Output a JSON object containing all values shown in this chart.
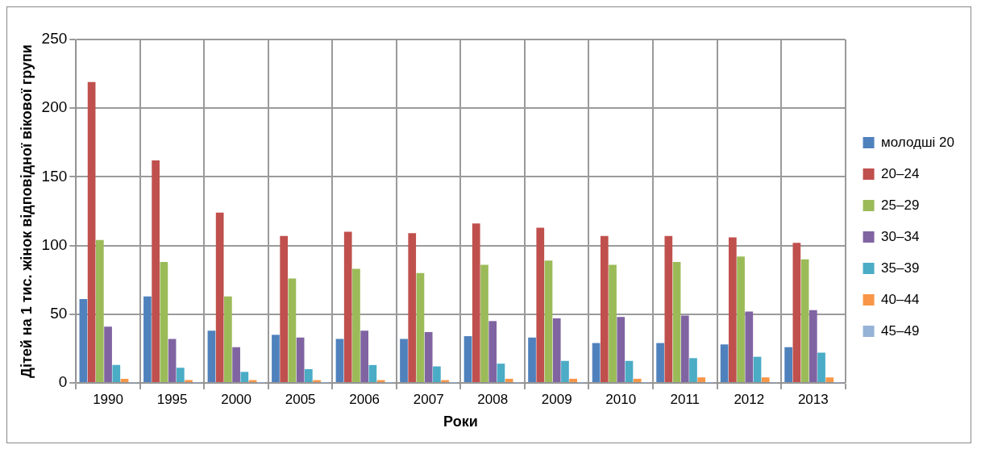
{
  "chart_data": {
    "type": "bar",
    "xlabel": "Роки",
    "ylabel": "Дітей на 1 тис. жінок відповідної вікової групи",
    "categories": [
      "1990",
      "1995",
      "2000",
      "2005",
      "2006",
      "2007",
      "2008",
      "2009",
      "2010",
      "2011",
      "2012",
      "2013"
    ],
    "series": [
      {
        "name": "молодші 20",
        "color": "#4f81bd",
        "values": [
          61,
          63,
          38,
          35,
          32,
          32,
          34,
          33,
          29,
          29,
          28,
          26
        ]
      },
      {
        "name": "20–24",
        "color": "#c0504d",
        "values": [
          219,
          162,
          124,
          107,
          110,
          109,
          116,
          113,
          107,
          107,
          106,
          102
        ]
      },
      {
        "name": "25–29",
        "color": "#9bbb59",
        "values": [
          104,
          88,
          63,
          76,
          83,
          80,
          86,
          89,
          86,
          88,
          92,
          90
        ]
      },
      {
        "name": "30–34",
        "color": "#8064a2",
        "values": [
          41,
          32,
          26,
          33,
          38,
          37,
          45,
          47,
          48,
          49,
          52,
          53
        ]
      },
      {
        "name": "35–39",
        "color": "#4bacc6",
        "values": [
          13,
          11,
          8,
          10,
          13,
          12,
          14,
          16,
          16,
          18,
          19,
          22
        ]
      },
      {
        "name": "40–44",
        "color": "#f79646",
        "values": [
          3,
          2,
          2,
          2,
          2,
          2,
          3,
          3,
          3,
          4,
          4,
          4
        ]
      },
      {
        "name": "45–49",
        "color": "#95b3d7",
        "values": [
          0.2,
          0.1,
          0.1,
          0.1,
          0.1,
          0.1,
          0.1,
          0.1,
          0.1,
          0.1,
          0.2,
          0.2
        ]
      }
    ],
    "ylim": [
      0,
      250
    ],
    "yticks": [
      0,
      50,
      100,
      150,
      200,
      250
    ],
    "grid": true,
    "legend": "right"
  }
}
